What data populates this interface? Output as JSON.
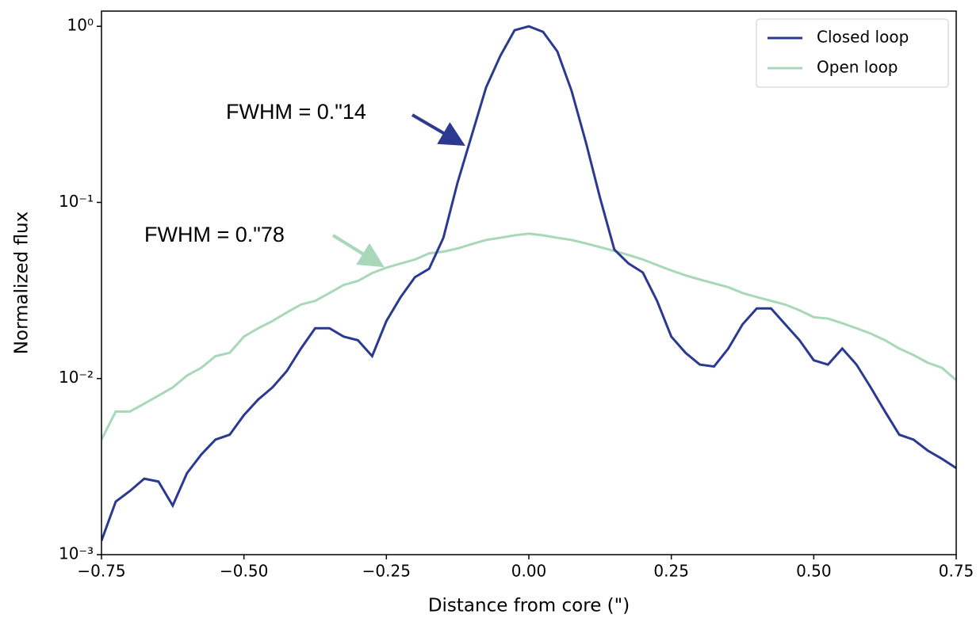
{
  "chart_data": {
    "type": "line",
    "log_y": true,
    "x_label": "Distance from core (\")",
    "y_label": "Normalized flux",
    "x": [
      -0.75,
      -0.725,
      -0.7,
      -0.675,
      -0.65,
      -0.625,
      -0.6,
      -0.575,
      -0.55,
      -0.525,
      -0.5,
      -0.475,
      -0.45,
      -0.425,
      -0.4,
      -0.375,
      -0.35,
      -0.325,
      -0.3,
      -0.275,
      -0.25,
      -0.225,
      -0.2,
      -0.175,
      -0.15,
      -0.125,
      -0.1,
      -0.075,
      -0.05,
      -0.025,
      0,
      0.025,
      0.05,
      0.075,
      0.1,
      0.125,
      0.15,
      0.175,
      0.2,
      0.225,
      0.25,
      0.275,
      0.3,
      0.325,
      0.35,
      0.375,
      0.4,
      0.425,
      0.45,
      0.475,
      0.5,
      0.525,
      0.55,
      0.575,
      0.6,
      0.625,
      0.65,
      0.675,
      0.7,
      0.725,
      0.75
    ],
    "series": [
      {
        "name": "Closed loop",
        "color": "#2b3990",
        "values": [
          0.0012,
          0.002,
          0.0023,
          0.0027,
          0.0026,
          0.0019,
          0.0029,
          0.0037,
          0.0045,
          0.0048,
          0.0062,
          0.0076,
          0.0089,
          0.011,
          0.0148,
          0.0193,
          0.0193,
          0.0173,
          0.0165,
          0.0134,
          0.0212,
          0.029,
          0.0376,
          0.042,
          0.063,
          0.13,
          0.242,
          0.45,
          0.68,
          0.95,
          1.0,
          0.93,
          0.72,
          0.43,
          0.22,
          0.106,
          0.054,
          0.045,
          0.04,
          0.0276,
          0.0173,
          0.014,
          0.012,
          0.0117,
          0.0148,
          0.0203,
          0.025,
          0.025,
          0.0203,
          0.0165,
          0.0127,
          0.012,
          0.0148,
          0.012,
          0.0089,
          0.0065,
          0.0048,
          0.0045,
          0.0039,
          0.0035,
          0.0031
        ]
      },
      {
        "name": "Open loop",
        "color": "#a8d8b9",
        "values": [
          0.0045,
          0.0065,
          0.0065,
          0.0072,
          0.008,
          0.0089,
          0.0104,
          0.0115,
          0.0134,
          0.014,
          0.0173,
          0.0193,
          0.0212,
          0.0237,
          0.0263,
          0.0276,
          0.0306,
          0.034,
          0.0358,
          0.0397,
          0.0426,
          0.045,
          0.0474,
          0.0514,
          0.0525,
          0.0548,
          0.058,
          0.0612,
          0.063,
          0.065,
          0.0665,
          0.065,
          0.063,
          0.0612,
          0.0585,
          0.0557,
          0.053,
          0.0503,
          0.0474,
          0.0441,
          0.0411,
          0.0385,
          0.0365,
          0.0347,
          0.033,
          0.0306,
          0.029,
          0.0276,
          0.0263,
          0.0244,
          0.0223,
          0.0219,
          0.0206,
          0.0193,
          0.018,
          0.0165,
          0.0148,
          0.0136,
          0.0123,
          0.0115,
          0.0098
        ]
      }
    ],
    "annotations": [
      "FWHM = 0.\"14",
      "FWHM = 0.\"78"
    ],
    "xlim": [
      -0.75,
      0.75
    ],
    "xticks": [
      {
        "value": -0.75,
        "label": "−0.75"
      },
      {
        "value": -0.5,
        "label": "−0.50"
      },
      {
        "value": -0.25,
        "label": "−0.25"
      },
      {
        "value": 0,
        "label": "0.00"
      },
      {
        "value": 0.25,
        "label": "0.25"
      },
      {
        "value": 0.5,
        "label": "0.50"
      },
      {
        "value": 0.75,
        "label": "0.75"
      }
    ],
    "ylim": [
      0.001,
      1.22
    ],
    "yticks": [
      {
        "value": 0.001,
        "label": "10⁻³"
      },
      {
        "value": 0.01,
        "label": "10⁻²"
      },
      {
        "value": 0.1,
        "label": "10⁻¹"
      },
      {
        "value": 1,
        "label": "10⁰"
      }
    ],
    "legend": "upper right"
  }
}
